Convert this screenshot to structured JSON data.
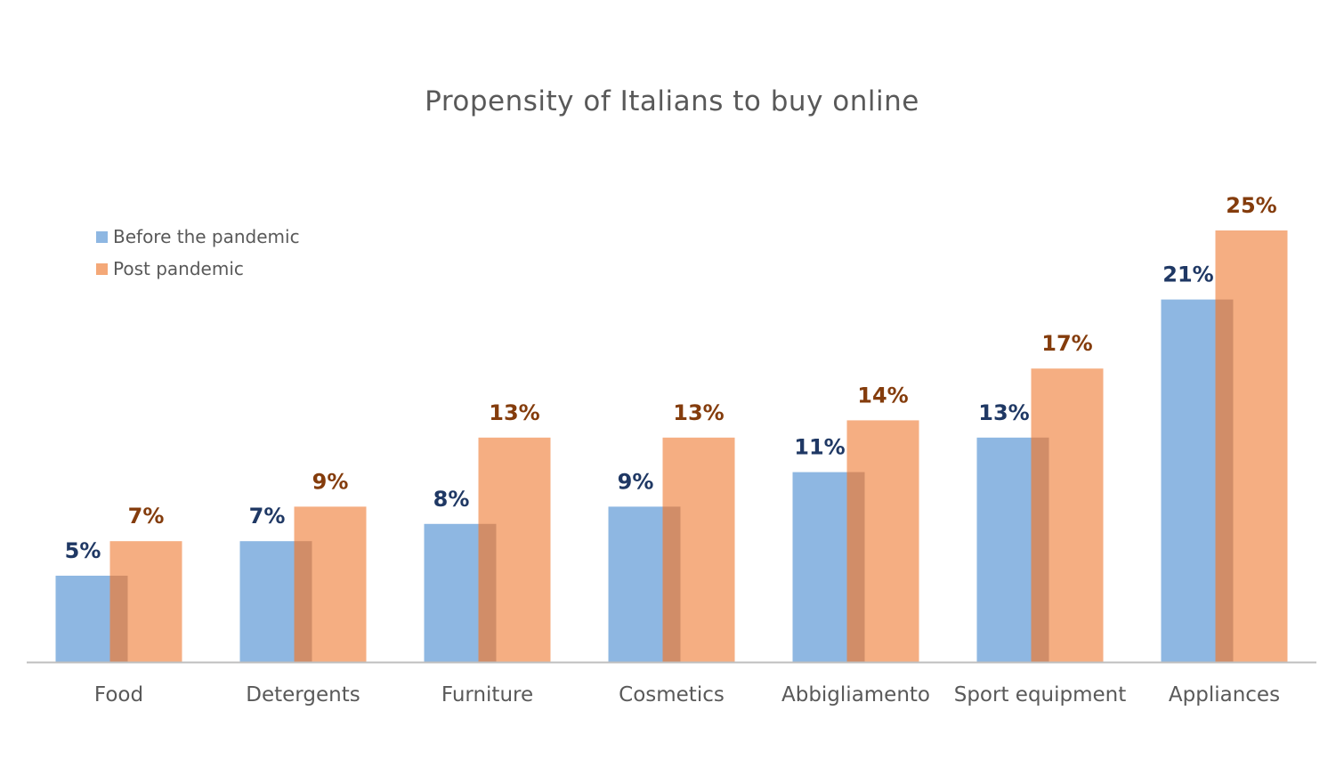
{
  "chart_data": {
    "type": "bar",
    "title": "Propensity of Italians to buy online",
    "xlabel": "",
    "ylabel": "",
    "ylim": [
      0,
      26
    ],
    "grid": false,
    "legend_position": "top-left",
    "categories": [
      "Food",
      "Detergents",
      "Furniture",
      "Cosmetics",
      "Abbigliamento",
      "Sport equipment",
      "Appliances"
    ],
    "series": [
      {
        "name": "Before the pandemic",
        "values": [
          5,
          7,
          8,
          9,
          11,
          13,
          21
        ],
        "labels": [
          "5%",
          "7%",
          "8%",
          "9%",
          "11%",
          "13%",
          "21%"
        ],
        "color": "#8EB7E2",
        "label_color": "#1F3864"
      },
      {
        "name": "Post pandemic",
        "values": [
          7,
          9,
          13,
          13,
          14,
          17,
          25
        ],
        "labels": [
          "7%",
          "9%",
          "13%",
          "13%",
          "14%",
          "17%",
          "25%"
        ],
        "color": "#F4A878",
        "label_color": "#843C0C"
      }
    ]
  }
}
